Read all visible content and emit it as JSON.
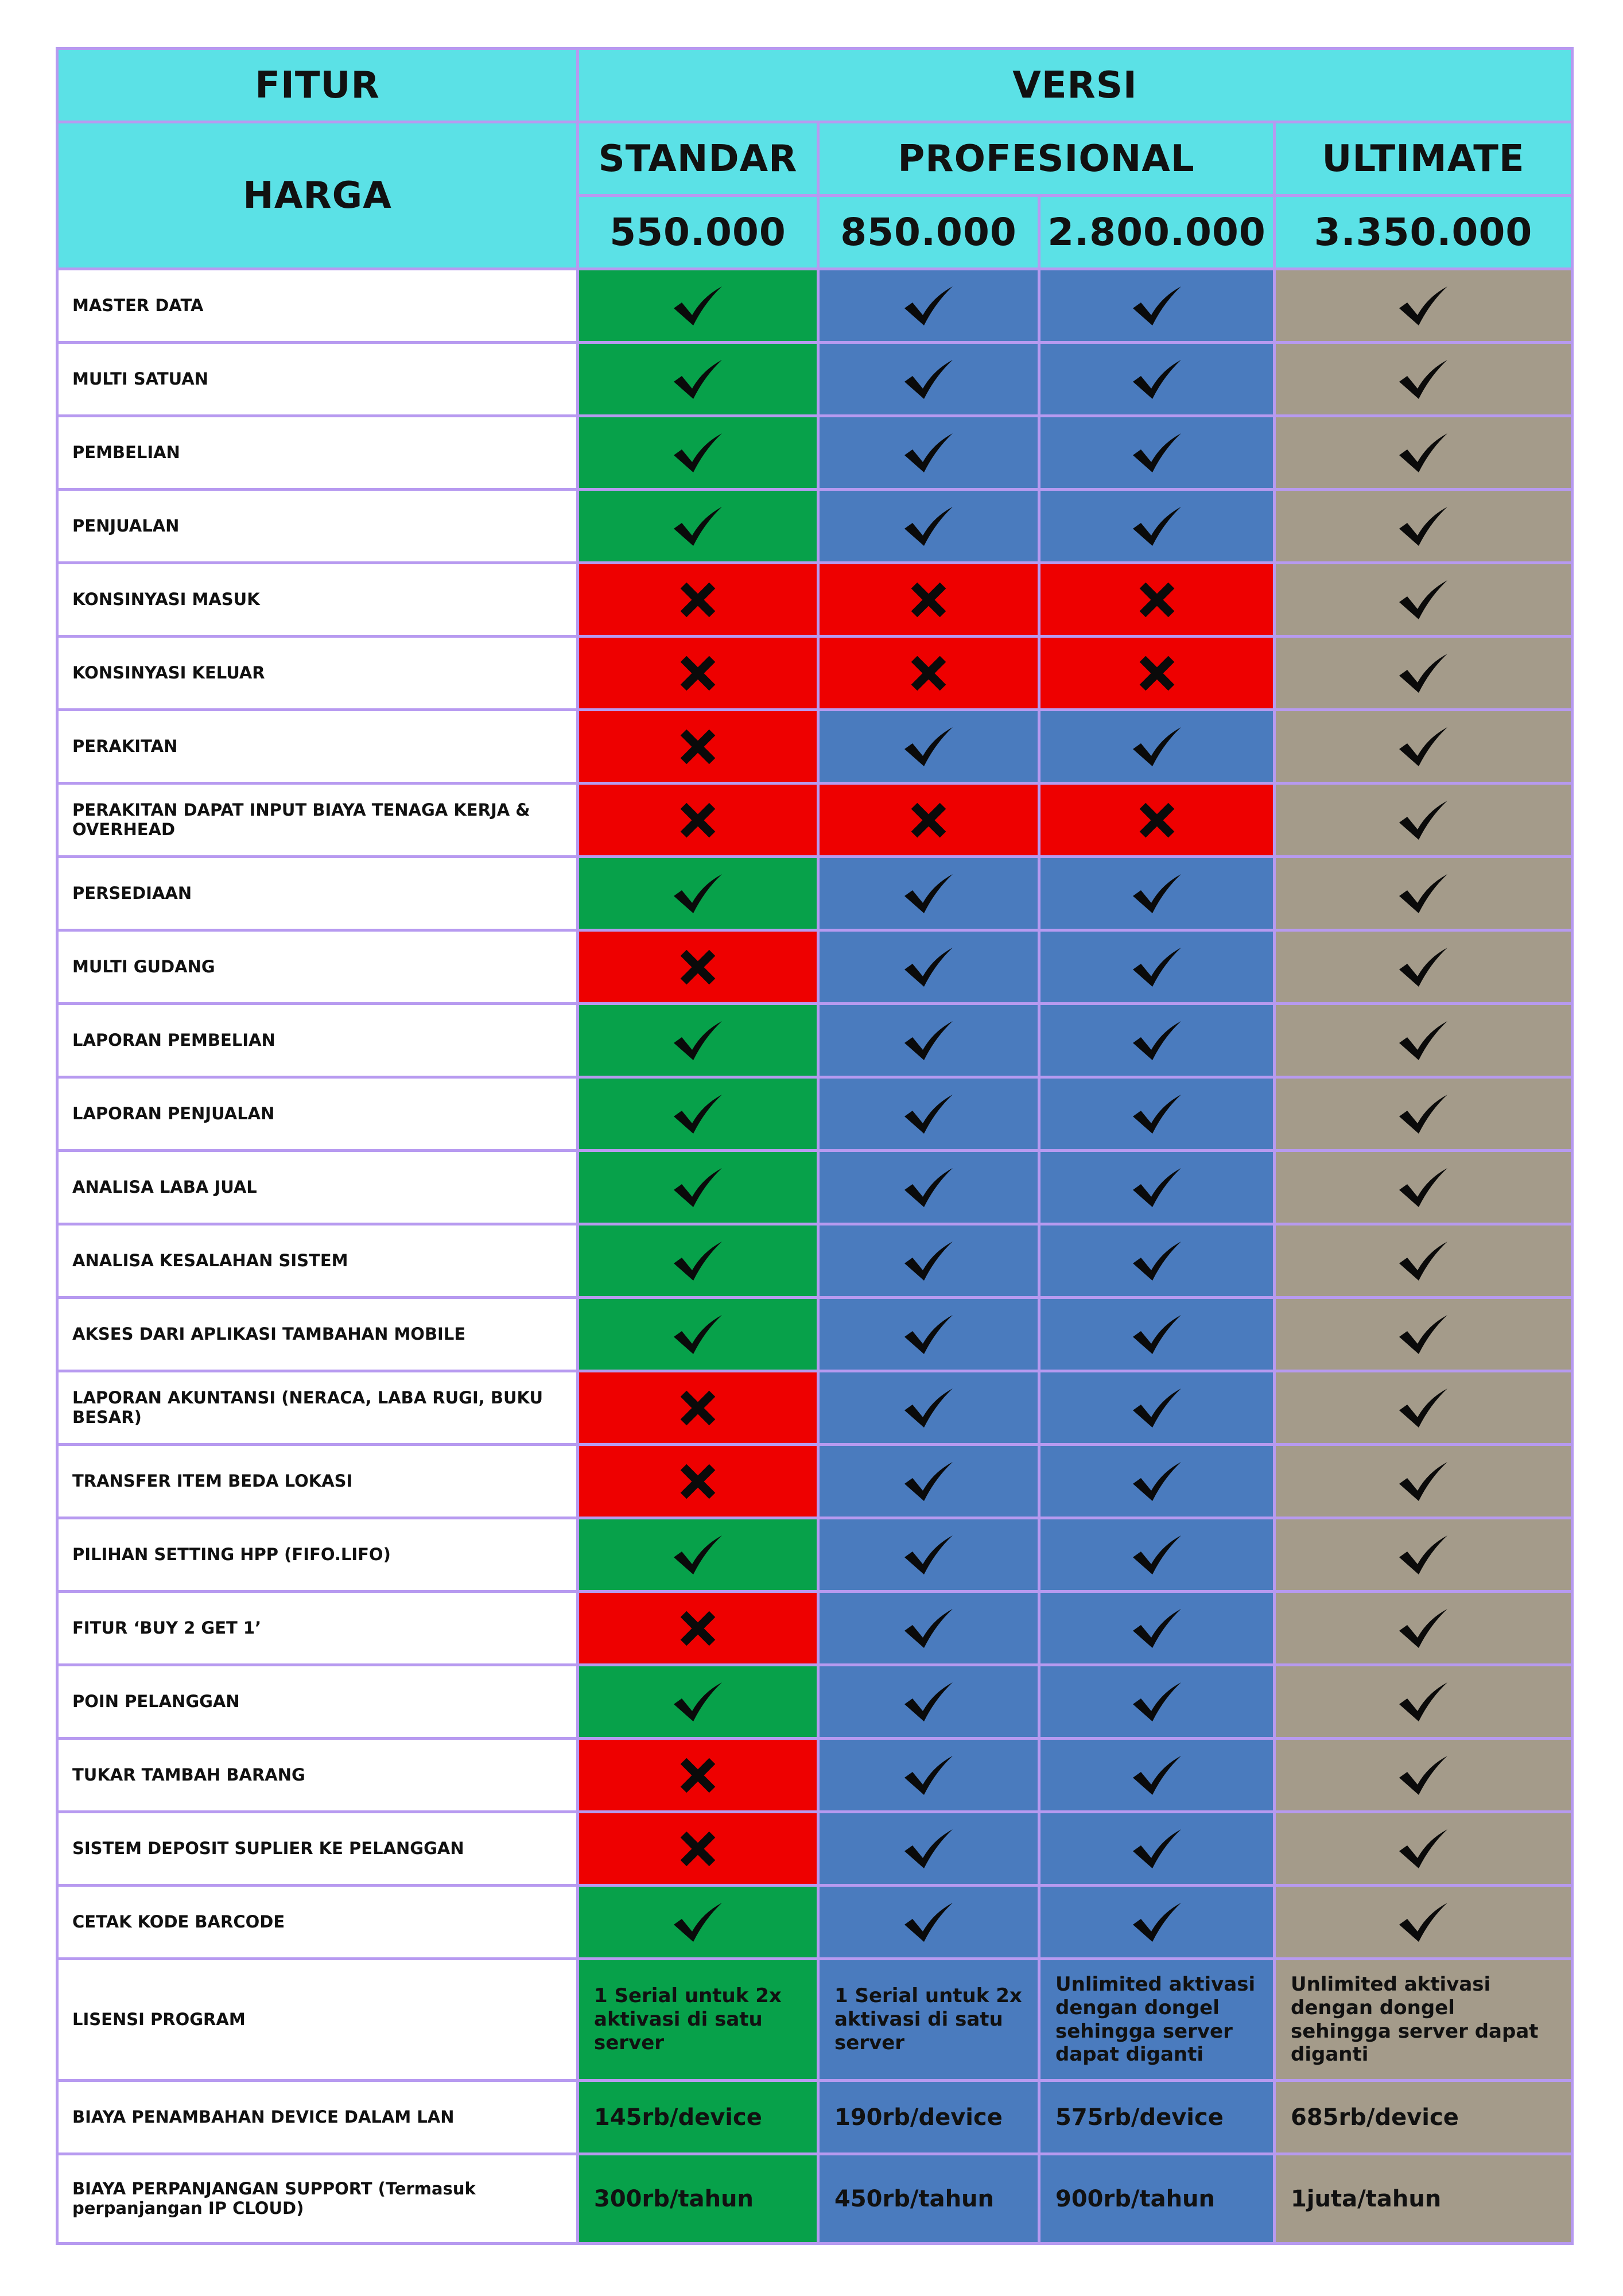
{
  "header": {
    "fitur": "FITUR",
    "versi": "VERSI",
    "harga": "HARGA",
    "editions": [
      "STANDAR",
      "PROFESIONAL",
      "ULTIMATE"
    ],
    "prices": [
      "550.000",
      "850.000",
      "2.800.000",
      "3.350.000"
    ]
  },
  "colors": {
    "header": "#5be1e6",
    "standar": "#07a14a",
    "profesional": "#4a7bbe",
    "ultimate": "#a49b8a",
    "not_included": "#ee0000",
    "border": "#b79af0"
  },
  "icons": {
    "included": "check-icon",
    "not_included": "cross-icon"
  },
  "features": [
    {
      "name": "MASTER DATA",
      "marks": [
        true,
        true,
        true,
        true
      ]
    },
    {
      "name": "MULTI SATUAN",
      "marks": [
        true,
        true,
        true,
        true
      ]
    },
    {
      "name": "PEMBELIAN",
      "marks": [
        true,
        true,
        true,
        true
      ]
    },
    {
      "name": "PENJUALAN",
      "marks": [
        true,
        true,
        true,
        true
      ]
    },
    {
      "name": "KONSINYASI MASUK",
      "marks": [
        false,
        false,
        false,
        true
      ]
    },
    {
      "name": "KONSINYASI KELUAR",
      "marks": [
        false,
        false,
        false,
        true
      ]
    },
    {
      "name": "PERAKITAN",
      "marks": [
        false,
        true,
        true,
        true
      ]
    },
    {
      "name": "PERAKITAN DAPAT INPUT BIAYA TENAGA KERJA & OVERHEAD",
      "marks": [
        false,
        false,
        false,
        true
      ]
    },
    {
      "name": "PERSEDIAAN",
      "marks": [
        true,
        true,
        true,
        true
      ]
    },
    {
      "name": "MULTI GUDANG",
      "marks": [
        false,
        true,
        true,
        true
      ]
    },
    {
      "name": "LAPORAN PEMBELIAN",
      "marks": [
        true,
        true,
        true,
        true
      ]
    },
    {
      "name": "LAPORAN PENJUALAN",
      "marks": [
        true,
        true,
        true,
        true
      ]
    },
    {
      "name": "ANALISA LABA JUAL",
      "marks": [
        true,
        true,
        true,
        true
      ]
    },
    {
      "name": "ANALISA KESALAHAN SISTEM",
      "marks": [
        true,
        true,
        true,
        true
      ]
    },
    {
      "name": "AKSES DARI APLIKASI TAMBAHAN MOBILE",
      "marks": [
        true,
        true,
        true,
        true
      ]
    },
    {
      "name": "LAPORAN AKUNTANSI (NERACA, LABA RUGI, BUKU BESAR)",
      "marks": [
        false,
        true,
        true,
        true
      ]
    },
    {
      "name": "TRANSFER ITEM BEDA LOKASI",
      "marks": [
        false,
        true,
        true,
        true
      ]
    },
    {
      "name": "PILIHAN SETTING HPP (FIFO.LIFO)",
      "marks": [
        true,
        true,
        true,
        true
      ]
    },
    {
      "name": "FITUR ‘BUY 2 GET 1’",
      "marks": [
        false,
        true,
        true,
        true
      ]
    },
    {
      "name": "POIN PELANGGAN",
      "marks": [
        true,
        true,
        true,
        true
      ]
    },
    {
      "name": "TUKAR TAMBAH BARANG",
      "marks": [
        false,
        true,
        true,
        true
      ]
    },
    {
      "name": "SISTEM DEPOSIT SUPLIER KE PELANGGAN",
      "marks": [
        false,
        true,
        true,
        true
      ]
    },
    {
      "name": "CETAK KODE BARCODE",
      "marks": [
        true,
        true,
        true,
        true
      ]
    }
  ],
  "text_rows": [
    {
      "name": "LISENSI PROGRAM",
      "values": [
        "1 Serial untuk 2x aktivasi di satu server",
        "1 Serial untuk 2x aktivasi di satu server",
        "Unlimited aktivasi dengan dongel sehingga server dapat diganti",
        "Unlimited aktivasi dengan dongel sehingga server dapat diganti"
      ]
    },
    {
      "name": "BIAYA PENAMBAHAN DEVICE DALAM LAN",
      "values": [
        "145rb/device",
        "190rb/device",
        "575rb/device",
        "685rb/device"
      ]
    },
    {
      "name": "BIAYA PERPANJANGAN SUPPORT (Termasuk perpanjangan IP CLOUD)",
      "values": [
        "300rb/tahun",
        "450rb/tahun",
        "900rb/tahun",
        "1juta/tahun"
      ]
    }
  ]
}
